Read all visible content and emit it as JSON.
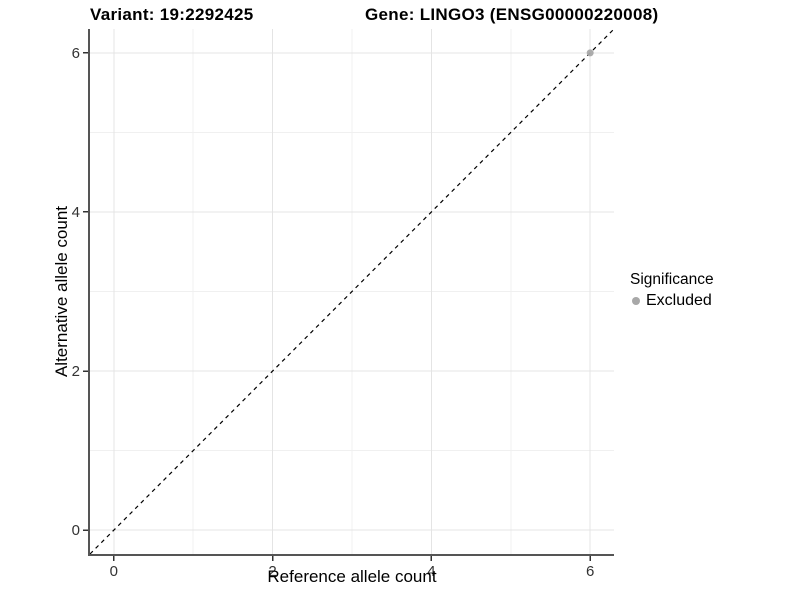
{
  "titles": {
    "variant": "Variant: 19:2292425",
    "gene": "Gene: LINGO3 (ENSG00000220008)"
  },
  "axes": {
    "x_label": "Reference allele count",
    "y_label": "Alternative allele count",
    "x_tick_labels": [
      "0",
      "2",
      "4",
      "6"
    ],
    "y_tick_labels": [
      "0",
      "2",
      "4",
      "6"
    ]
  },
  "legend": {
    "title": "Significance",
    "items": [
      {
        "label": "Excluded",
        "color": "#a8a8a8"
      }
    ]
  },
  "colors": {
    "background": "#ffffff",
    "grid_major": "#e4e4e4",
    "grid_minor": "#f0f0f0",
    "axis_line": "#555555",
    "tick_mark": "#333333",
    "tick_label": "#333333",
    "identity_line": "#000000",
    "point": "#a8a8a8"
  },
  "chart_data": {
    "type": "scatter",
    "title": "Variant: 19:2292425    Gene: LINGO3 (ENSG00000220008)",
    "xlabel": "Reference allele count",
    "ylabel": "Alternative allele count",
    "xlim": [
      -0.3,
      6.3
    ],
    "ylim": [
      -0.3,
      6.3
    ],
    "x_ticks": [
      0,
      2,
      4,
      6
    ],
    "y_ticks": [
      0,
      2,
      4,
      6
    ],
    "x_minor_ticks": [
      1,
      3,
      5
    ],
    "y_minor_ticks": [
      1,
      3,
      5
    ],
    "grid": "on",
    "legend_position": "right",
    "series": [
      {
        "name": "Excluded",
        "color": "#a8a8a8",
        "points": [
          [
            6,
            6
          ]
        ]
      }
    ],
    "identity_line": {
      "equation": "y = x",
      "style": "dashed",
      "color": "#000000",
      "from": [
        -0.3,
        -0.3
      ],
      "to": [
        6.3,
        6.3
      ]
    }
  }
}
